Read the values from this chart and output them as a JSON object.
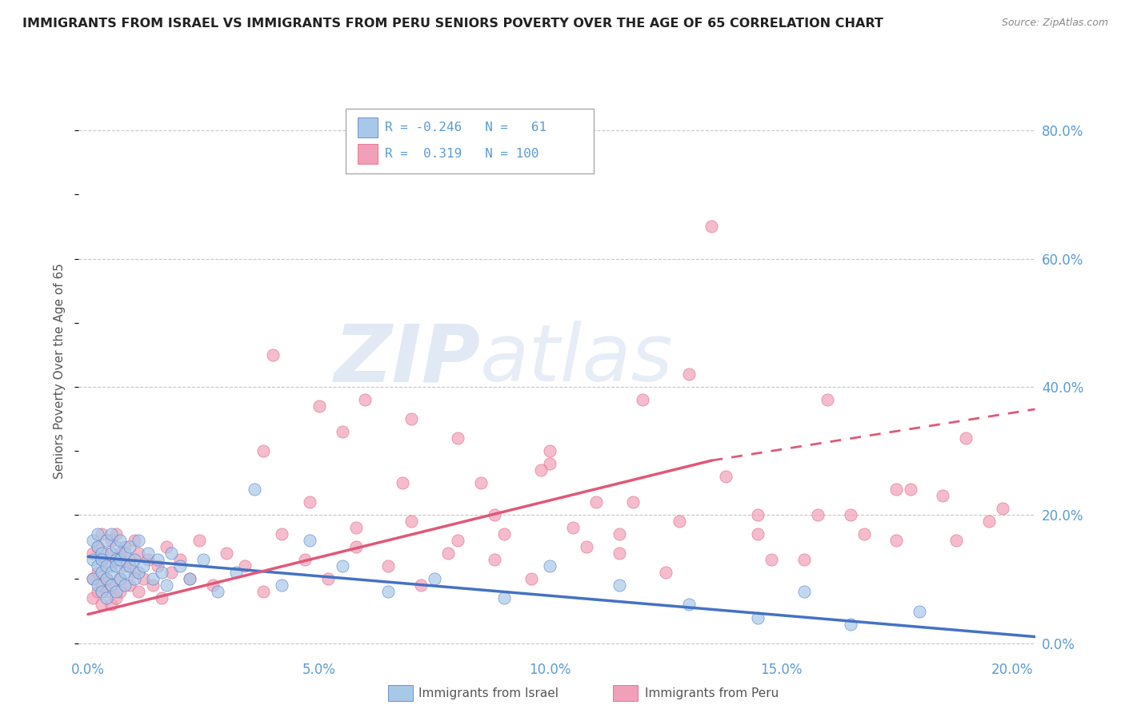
{
  "title": "IMMIGRANTS FROM ISRAEL VS IMMIGRANTS FROM PERU SENIORS POVERTY OVER THE AGE OF 65 CORRELATION CHART",
  "source": "Source: ZipAtlas.com",
  "ylabel": "Seniors Poverty Over the Age of 65",
  "x_tick_labels": [
    "0.0%",
    "5.0%",
    "10.0%",
    "15.0%",
    "20.0%"
  ],
  "x_tick_vals": [
    0.0,
    0.05,
    0.1,
    0.15,
    0.2
  ],
  "y_tick_labels_right": [
    "80.0%",
    "60.0%",
    "40.0%",
    "20.0%",
    "0.0%"
  ],
  "y_tick_vals": [
    0.8,
    0.6,
    0.4,
    0.2,
    0.0
  ],
  "xlim": [
    -0.002,
    0.205
  ],
  "ylim": [
    -0.02,
    0.87
  ],
  "israel_R": -0.246,
  "israel_N": 61,
  "peru_R": 0.319,
  "peru_N": 100,
  "scatter_israel_color": "#a8c8e8",
  "scatter_peru_color": "#f0a0b8",
  "line_israel_color": "#4472c4",
  "line_peru_color": "#e05878",
  "watermark_zip": "ZIP",
  "watermark_atlas": "atlas",
  "watermark_color_zip": "#c8d8ec",
  "watermark_color_atlas": "#c8d8ec",
  "bg_color": "#ffffff",
  "grid_color": "#c8c8c8",
  "title_color": "#222222",
  "axis_label_color": "#555555",
  "tick_label_color": "#5b9bd5",
  "legend_label_text": [
    "Immigrants from Israel",
    "Immigrants from Peru"
  ],
  "israel_line_x0": 0.0,
  "israel_line_y0": 0.135,
  "israel_line_x1": 0.205,
  "israel_line_y1": 0.01,
  "peru_line_solid_x0": 0.0,
  "peru_line_solid_y0": 0.045,
  "peru_line_solid_x1": 0.135,
  "peru_line_solid_y1": 0.285,
  "peru_line_dash_x0": 0.135,
  "peru_line_dash_y0": 0.285,
  "peru_line_dash_x1": 0.205,
  "peru_line_dash_y1": 0.365,
  "israel_x": [
    0.001,
    0.001,
    0.001,
    0.002,
    0.002,
    0.002,
    0.002,
    0.003,
    0.003,
    0.003,
    0.003,
    0.004,
    0.004,
    0.004,
    0.004,
    0.005,
    0.005,
    0.005,
    0.005,
    0.006,
    0.006,
    0.006,
    0.006,
    0.007,
    0.007,
    0.007,
    0.008,
    0.008,
    0.008,
    0.009,
    0.009,
    0.01,
    0.01,
    0.011,
    0.011,
    0.012,
    0.013,
    0.014,
    0.015,
    0.016,
    0.017,
    0.018,
    0.02,
    0.022,
    0.025,
    0.028,
    0.032,
    0.036,
    0.042,
    0.048,
    0.055,
    0.065,
    0.075,
    0.09,
    0.1,
    0.115,
    0.13,
    0.145,
    0.155,
    0.165,
    0.18
  ],
  "israel_y": [
    0.13,
    0.1,
    0.16,
    0.12,
    0.15,
    0.09,
    0.17,
    0.11,
    0.14,
    0.08,
    0.13,
    0.1,
    0.16,
    0.12,
    0.07,
    0.14,
    0.11,
    0.17,
    0.09,
    0.13,
    0.15,
    0.08,
    0.12,
    0.1,
    0.16,
    0.13,
    0.11,
    0.14,
    0.09,
    0.12,
    0.15,
    0.1,
    0.13,
    0.11,
    0.16,
    0.12,
    0.14,
    0.1,
    0.13,
    0.11,
    0.09,
    0.14,
    0.12,
    0.1,
    0.13,
    0.08,
    0.11,
    0.24,
    0.09,
    0.16,
    0.12,
    0.08,
    0.1,
    0.07,
    0.12,
    0.09,
    0.06,
    0.04,
    0.08,
    0.03,
    0.05
  ],
  "peru_x": [
    0.001,
    0.001,
    0.001,
    0.002,
    0.002,
    0.002,
    0.003,
    0.003,
    0.003,
    0.003,
    0.004,
    0.004,
    0.004,
    0.005,
    0.005,
    0.005,
    0.005,
    0.006,
    0.006,
    0.006,
    0.007,
    0.007,
    0.007,
    0.008,
    0.008,
    0.009,
    0.009,
    0.01,
    0.01,
    0.011,
    0.011,
    0.012,
    0.013,
    0.014,
    0.015,
    0.016,
    0.017,
    0.018,
    0.02,
    0.022,
    0.024,
    0.027,
    0.03,
    0.034,
    0.038,
    0.042,
    0.047,
    0.052,
    0.058,
    0.065,
    0.072,
    0.08,
    0.088,
    0.096,
    0.105,
    0.115,
    0.125,
    0.135,
    0.145,
    0.155,
    0.165,
    0.175,
    0.185,
    0.195,
    0.04,
    0.05,
    0.06,
    0.07,
    0.08,
    0.09,
    0.1,
    0.11,
    0.12,
    0.055,
    0.07,
    0.085,
    0.1,
    0.115,
    0.13,
    0.145,
    0.16,
    0.175,
    0.19,
    0.038,
    0.048,
    0.058,
    0.068,
    0.078,
    0.088,
    0.098,
    0.108,
    0.118,
    0.128,
    0.138,
    0.148,
    0.158,
    0.168,
    0.178,
    0.188,
    0.198
  ],
  "peru_y": [
    0.1,
    0.07,
    0.14,
    0.11,
    0.08,
    0.15,
    0.09,
    0.13,
    0.06,
    0.17,
    0.1,
    0.14,
    0.08,
    0.12,
    0.06,
    0.16,
    0.09,
    0.13,
    0.07,
    0.17,
    0.1,
    0.14,
    0.08,
    0.12,
    0.15,
    0.09,
    0.13,
    0.11,
    0.16,
    0.08,
    0.14,
    0.1,
    0.13,
    0.09,
    0.12,
    0.07,
    0.15,
    0.11,
    0.13,
    0.1,
    0.16,
    0.09,
    0.14,
    0.12,
    0.08,
    0.17,
    0.13,
    0.1,
    0.15,
    0.12,
    0.09,
    0.16,
    0.13,
    0.1,
    0.18,
    0.14,
    0.11,
    0.65,
    0.17,
    0.13,
    0.2,
    0.16,
    0.23,
    0.19,
    0.45,
    0.37,
    0.38,
    0.35,
    0.32,
    0.17,
    0.28,
    0.22,
    0.38,
    0.33,
    0.19,
    0.25,
    0.3,
    0.17,
    0.42,
    0.2,
    0.38,
    0.24,
    0.32,
    0.3,
    0.22,
    0.18,
    0.25,
    0.14,
    0.2,
    0.27,
    0.15,
    0.22,
    0.19,
    0.26,
    0.13,
    0.2,
    0.17,
    0.24,
    0.16,
    0.21
  ]
}
